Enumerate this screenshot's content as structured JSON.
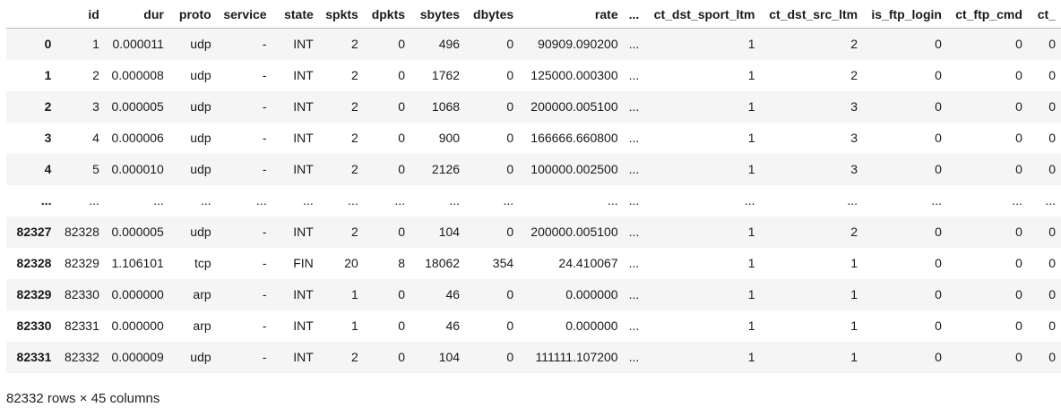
{
  "table": {
    "columns": [
      "",
      "id",
      "dur",
      "proto",
      "service",
      "state",
      "spkts",
      "dpkts",
      "sbytes",
      "dbytes",
      "rate",
      "...",
      "ct_dst_sport_ltm",
      "ct_dst_src_ltm",
      "is_ftp_login",
      "ct_ftp_cmd",
      "ct_"
    ],
    "rows": [
      [
        "0",
        "1",
        "0.000011",
        "udp",
        "-",
        "INT",
        "2",
        "0",
        "496",
        "0",
        "90909.090200",
        "...",
        "1",
        "2",
        "0",
        "0",
        "0"
      ],
      [
        "1",
        "2",
        "0.000008",
        "udp",
        "-",
        "INT",
        "2",
        "0",
        "1762",
        "0",
        "125000.000300",
        "...",
        "1",
        "2",
        "0",
        "0",
        "0"
      ],
      [
        "2",
        "3",
        "0.000005",
        "udp",
        "-",
        "INT",
        "2",
        "0",
        "1068",
        "0",
        "200000.005100",
        "...",
        "1",
        "3",
        "0",
        "0",
        "0"
      ],
      [
        "3",
        "4",
        "0.000006",
        "udp",
        "-",
        "INT",
        "2",
        "0",
        "900",
        "0",
        "166666.660800",
        "...",
        "1",
        "3",
        "0",
        "0",
        "0"
      ],
      [
        "4",
        "5",
        "0.000010",
        "udp",
        "-",
        "INT",
        "2",
        "0",
        "2126",
        "0",
        "100000.002500",
        "...",
        "1",
        "3",
        "0",
        "0",
        "0"
      ],
      [
        "...",
        "...",
        "...",
        "...",
        "...",
        "...",
        "...",
        "...",
        "...",
        "...",
        "...",
        "...",
        "...",
        "...",
        "...",
        "...",
        "..."
      ],
      [
        "82327",
        "82328",
        "0.000005",
        "udp",
        "-",
        "INT",
        "2",
        "0",
        "104",
        "0",
        "200000.005100",
        "...",
        "1",
        "2",
        "0",
        "0",
        "0"
      ],
      [
        "82328",
        "82329",
        "1.106101",
        "tcp",
        "-",
        "FIN",
        "20",
        "8",
        "18062",
        "354",
        "24.410067",
        "...",
        "1",
        "1",
        "0",
        "0",
        "0"
      ],
      [
        "82329",
        "82330",
        "0.000000",
        "arp",
        "-",
        "INT",
        "1",
        "0",
        "46",
        "0",
        "0.000000",
        "...",
        "1",
        "1",
        "0",
        "0",
        "0"
      ],
      [
        "82330",
        "82331",
        "0.000000",
        "arp",
        "-",
        "INT",
        "1",
        "0",
        "46",
        "0",
        "0.000000",
        "...",
        "1",
        "1",
        "0",
        "0",
        "0"
      ],
      [
        "82331",
        "82332",
        "0.000009",
        "udp",
        "-",
        "INT",
        "2",
        "0",
        "104",
        "0",
        "111111.107200",
        "...",
        "1",
        "1",
        "0",
        "0",
        "0"
      ]
    ]
  },
  "footer": {
    "shape": "82332 rows × 45 columns"
  },
  "colors": {
    "stripe": "#f5f5f5",
    "text": "#1a1a1a",
    "header_border": "#bdbdbd"
  }
}
